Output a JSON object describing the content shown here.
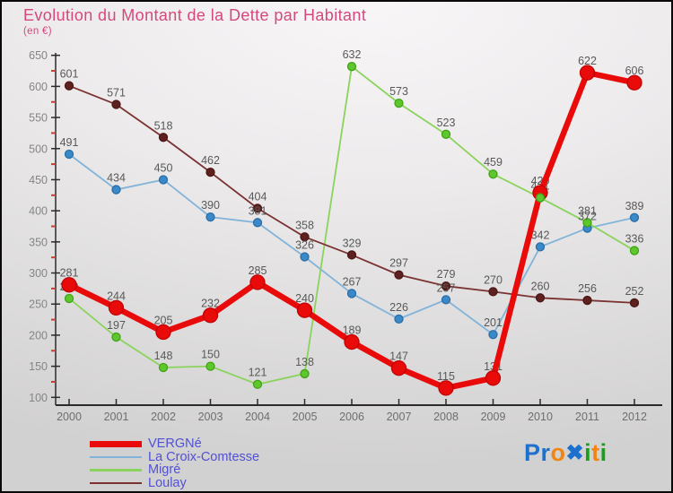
{
  "header": {
    "title": "Evolution du Montant de la Dette par Habitant",
    "subtitle": "(en €)",
    "title_color": "#d5487d"
  },
  "chart_data": {
    "type": "line",
    "title": "Evolution du Montant de la Dette par Habitant",
    "unit_label": "(en €)",
    "x": [
      2000,
      2001,
      2002,
      2003,
      2004,
      2005,
      2006,
      2007,
      2008,
      2009,
      2010,
      2011,
      2012
    ],
    "series": [
      {
        "name": "VERGNé",
        "values": [
          281,
          244,
          205,
          232,
          285,
          240,
          189,
          147,
          115,
          131,
          429,
          622,
          606
        ],
        "line_color": "#e90a0a",
        "marker_color": "#e90a0a",
        "marker_stroke": "#c20303",
        "line_width": 6.5,
        "marker_radius": 8
      },
      {
        "name": "La Croix-Comtesse",
        "values": [
          491,
          434,
          450,
          390,
          381,
          326,
          267,
          226,
          257,
          201,
          342,
          372,
          389
        ],
        "line_color": "#82b4d9",
        "marker_color": "#3a89c9",
        "marker_stroke": "#2b6da6",
        "line_width": 1.8,
        "marker_radius": 4.5
      },
      {
        "name": "Migré",
        "values": [
          259,
          197,
          148,
          150,
          121,
          138,
          632,
          573,
          523,
          459,
          421,
          381,
          336
        ],
        "line_color": "#8bd35c",
        "marker_color": "#5fc72e",
        "marker_stroke": "#3fa315",
        "line_width": 1.8,
        "marker_radius": 4.5
      },
      {
        "name": "Loulay",
        "values": [
          601,
          571,
          518,
          462,
          404,
          358,
          329,
          297,
          279,
          270,
          260,
          256,
          252
        ],
        "line_color": "#7a3331",
        "marker_color": "#5f211f",
        "marker_stroke": "#4a1715",
        "line_width": 1.8,
        "marker_radius": 4.5
      }
    ],
    "ylim": [
      100,
      650
    ],
    "ytick_step": 50,
    "yminor_step": 25,
    "xlabel": "",
    "ylabel": "",
    "grid": false,
    "legend_position": "bottom-left",
    "value_labels": true,
    "label_color": "#595959",
    "axis_color": "#2b2b2b",
    "ytick_label_color": "#858585",
    "xtick_label_color": "#6e6e6e",
    "minor_tick_color": "#d43a2a"
  },
  "legend": {
    "text_color": "#5151d3",
    "items": [
      "VERGNé",
      "La Croix-Comtesse",
      "Migré",
      "Loulay"
    ]
  },
  "logo": {
    "text": "Proxiti",
    "letters": [
      {
        "ch": "P",
        "color": "#1e70cf"
      },
      {
        "ch": "r",
        "color": "#1e70cf"
      },
      {
        "ch": "o",
        "color": "#f28411"
      },
      {
        "ch": "x",
        "color": "#1e70cf"
      },
      {
        "ch": "i",
        "color": "#18a018"
      },
      {
        "ch": "t",
        "color": "#f28411"
      },
      {
        "ch": "i",
        "color": "#18a018"
      }
    ]
  }
}
